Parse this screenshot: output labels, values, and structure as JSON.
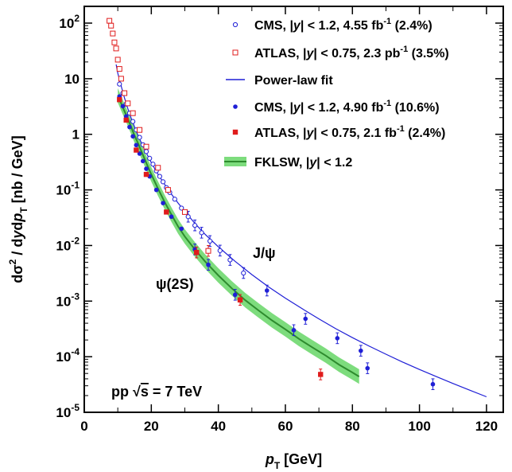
{
  "chart_data": {
    "type": "scatter",
    "xlabel": {
      "pre": "p",
      "sub": "T",
      "unit": " [GeV]"
    },
    "ylabel": {
      "p1": "d",
      "sym": "σ",
      "sup": "2",
      "p2": " / d",
      "y": "y",
      "p3": "d",
      "p": "p",
      "sub": "T",
      "unit": "  [nb / GeV]"
    },
    "xlim": [
      0,
      125
    ],
    "ylim": [
      1e-05,
      200
    ],
    "y_scale": "log",
    "x_ticks": [
      0,
      20,
      40,
      60,
      80,
      100,
      120
    ],
    "y_ticks": [
      {
        "value": 1e-05,
        "base": "10",
        "exp": "-5"
      },
      {
        "value": 0.0001,
        "base": "10",
        "exp": "-4"
      },
      {
        "value": 0.001,
        "base": "10",
        "exp": "-3"
      },
      {
        "value": 0.01,
        "base": "10",
        "exp": "-2"
      },
      {
        "value": 0.1,
        "base": "10",
        "exp": "-1"
      },
      {
        "value": 1,
        "base": "1",
        "exp": ""
      },
      {
        "value": 10,
        "base": "10",
        "exp": ""
      },
      {
        "value": 100,
        "base": "10",
        "exp": "2"
      }
    ],
    "series": [
      {
        "name": "CMS, |y| < 1.2, 4.55 fb-1 (2.4%)",
        "marker": "open-circle",
        "color": "#1f1fd6",
        "points": [
          [
            10.5,
            8.0
          ],
          [
            11.5,
            5.5
          ],
          [
            12.5,
            3.5
          ],
          [
            13.5,
            2.4
          ],
          [
            14.5,
            1.7
          ],
          [
            15.5,
            1.2
          ],
          [
            16.5,
            0.88
          ],
          [
            17.5,
            0.65
          ],
          [
            18.5,
            0.49
          ],
          [
            19.5,
            0.37
          ],
          [
            20.5,
            0.29
          ],
          [
            21.5,
            0.22
          ],
          [
            22.5,
            0.175
          ],
          [
            23.5,
            0.14
          ],
          [
            24.5,
            0.11
          ],
          [
            25.5,
            0.09
          ],
          [
            27.0,
            0.068
          ],
          [
            29.0,
            0.047
          ],
          [
            31.0,
            0.033
          ],
          [
            33.0,
            0.023
          ],
          [
            35.0,
            0.017
          ],
          [
            37.5,
            0.012
          ],
          [
            40.5,
            0.0081
          ],
          [
            43.5,
            0.0055
          ],
          [
            47.5,
            0.0032
          ]
        ]
      },
      {
        "name": "ATLAS, |y| < 0.75, 2.3 pb-1 (3.5%)",
        "marker": "open-square",
        "color": "#e01c1c",
        "points": [
          [
            7.5,
            110
          ],
          [
            8.0,
            90
          ],
          [
            8.5,
            65
          ],
          [
            9.0,
            45
          ],
          [
            9.5,
            35
          ],
          [
            10.0,
            22
          ],
          [
            10.5,
            15
          ],
          [
            11.0,
            10
          ],
          [
            12.0,
            5.5
          ],
          [
            13.0,
            3.6
          ],
          [
            14.5,
            2.4
          ],
          [
            16.5,
            1.2
          ],
          [
            18.5,
            0.6
          ],
          [
            22.0,
            0.25
          ],
          [
            25.0,
            0.1
          ],
          [
            30.0,
            0.04
          ],
          [
            37.0,
            0.008
          ]
        ]
      },
      {
        "name": "CMS, |y| < 1.2, 4.90 fb-1 (10.6%)",
        "marker": "filled-circle",
        "color": "#1f1fd6",
        "points": [
          [
            10.5,
            4.8
          ],
          [
            11.5,
            3.2
          ],
          [
            12.5,
            2.1
          ],
          [
            13.5,
            1.35
          ],
          [
            14.5,
            0.92
          ],
          [
            15.5,
            0.64
          ],
          [
            16.5,
            0.45
          ],
          [
            17.5,
            0.33
          ],
          [
            18.5,
            0.24
          ],
          [
            19.5,
            0.175
          ],
          [
            21.5,
            0.1
          ],
          [
            23.5,
            0.058
          ],
          [
            26.0,
            0.033
          ],
          [
            29.0,
            0.02
          ],
          [
            33.0,
            0.0085
          ],
          [
            37.0,
            0.0045
          ],
          [
            45.0,
            0.0013
          ],
          [
            54.5,
            0.00155
          ],
          [
            62.5,
            0.0003
          ],
          [
            66.0,
            0.00048
          ],
          [
            75.5,
            0.000215
          ],
          [
            82.5,
            0.000128
          ],
          [
            84.5,
            6.2e-05
          ],
          [
            104.0,
            3.2e-05
          ]
        ]
      },
      {
        "name": "ATLAS, |y| < 0.75, 2.1 fb-1 (2.4%)",
        "marker": "filled-square",
        "color": "#e01c1c",
        "points": [
          [
            10.5,
            4.2
          ],
          [
            12.5,
            1.8
          ],
          [
            15.5,
            0.52
          ],
          [
            18.5,
            0.19
          ],
          [
            24.5,
            0.04
          ],
          [
            33.5,
            0.0075
          ],
          [
            46.5,
            0.00105
          ],
          [
            70.5,
            4.8e-05
          ]
        ]
      },
      {
        "name": "Power-law fit",
        "type": "line",
        "color": "#1f1fd6",
        "curve": [
          [
            9.5,
            18.0
          ],
          [
            10,
            12.5
          ],
          [
            11,
            7.4
          ],
          [
            12,
            4.5
          ],
          [
            13,
            2.9
          ],
          [
            14,
            1.95
          ],
          [
            15,
            1.36
          ],
          [
            16,
            0.97
          ],
          [
            17,
            0.71
          ],
          [
            18,
            0.53
          ],
          [
            20,
            0.31
          ],
          [
            22,
            0.19
          ],
          [
            24,
            0.125
          ],
          [
            26,
            0.084
          ],
          [
            28,
            0.058
          ],
          [
            30,
            0.041
          ],
          [
            33,
            0.025
          ],
          [
            36,
            0.016
          ],
          [
            40,
            0.0095
          ],
          [
            45,
            0.0052
          ],
          [
            50,
            0.003
          ],
          [
            55,
            0.0018
          ],
          [
            60,
            0.00113
          ],
          [
            65,
            0.00073
          ],
          [
            70,
            0.00048
          ],
          [
            75,
            0.00032
          ],
          [
            80,
            0.00022
          ],
          [
            85,
            0.000155
          ],
          [
            90,
            0.000111
          ],
          [
            95,
            8e-05
          ],
          [
            100,
            5.9e-05
          ],
          [
            105,
            4.4e-05
          ],
          [
            110,
            3.3e-05
          ],
          [
            115,
            2.5e-05
          ],
          [
            120,
            1.9e-05
          ]
        ]
      },
      {
        "name": "FKLSW, |y| < 1.2",
        "type": "band",
        "color": "#2e8b2e",
        "band_color": "#7ddc7d",
        "curve": [
          [
            10,
            5.0
          ],
          [
            11,
            3.6
          ],
          [
            12,
            2.6
          ],
          [
            13,
            1.9
          ],
          [
            14,
            1.35
          ],
          [
            15,
            0.95
          ],
          [
            16,
            0.7
          ],
          [
            17,
            0.5
          ],
          [
            18,
            0.36
          ],
          [
            19,
            0.26
          ],
          [
            20,
            0.19
          ],
          [
            22,
            0.105
          ],
          [
            24,
            0.06
          ],
          [
            26,
            0.036
          ],
          [
            28,
            0.022
          ],
          [
            30,
            0.0145
          ],
          [
            33,
            0.0085
          ],
          [
            36,
            0.0052
          ],
          [
            40,
            0.0029
          ],
          [
            44,
            0.0017
          ],
          [
            48,
            0.00104
          ],
          [
            52,
            0.00068
          ],
          [
            56,
            0.00045
          ],
          [
            60,
            0.00031
          ],
          [
            64,
            0.00021
          ],
          [
            68,
            0.000148
          ],
          [
            72,
            0.000105
          ],
          [
            76,
            7.2e-05
          ],
          [
            80,
            5.2e-05
          ],
          [
            82,
            4.4e-05
          ]
        ]
      }
    ],
    "legend": [
      {
        "marker": "open-circle",
        "color": "#1f1fd6",
        "exp": "CMS",
        "cond": "y",
        "range": " < 1.2, 4.55 fb",
        "sup": "-1",
        "tail": " (2.4%)"
      },
      {
        "marker": "open-square",
        "color": "#e01c1c",
        "exp": "ATLAS",
        "cond": "y",
        "range": " < 0.75, 2.3 pb",
        "sup": "-1",
        "tail": " (3.5%)"
      },
      {
        "marker": "line",
        "color": "#1f1fd6",
        "text": "Power-law fit"
      },
      {
        "marker": "filled-circle",
        "color": "#1f1fd6",
        "exp": "CMS",
        "cond": "y",
        "range": " < 1.2, 4.90 fb",
        "sup": "-1",
        "tail": " (10.6%)"
      },
      {
        "marker": "filled-square",
        "color": "#e01c1c",
        "exp": "ATLAS",
        "cond": "y",
        "range": " < 0.75, 2.1 fb",
        "sup": "-1",
        "tail": " (2.4%)"
      },
      {
        "marker": "band",
        "color": "#2e8b2e",
        "band_color": "#7ddc7d",
        "exp": "FKLSW",
        "cond": "y",
        "range": " < 1.2",
        "sup": "",
        "tail": ""
      }
    ],
    "legend_placement": "top-right",
    "annotations": {
      "jpsi": {
        "text": "J/ψ",
        "x": 49,
        "y": 0.008
      },
      "psi2s": {
        "text": "ψ(2S)",
        "x": 20,
        "y": 0.0012
      },
      "energy": {
        "pp": "pp",
        "sqrt": "√",
        "s": "s",
        "eq": " = 7 TeV"
      }
    }
  }
}
